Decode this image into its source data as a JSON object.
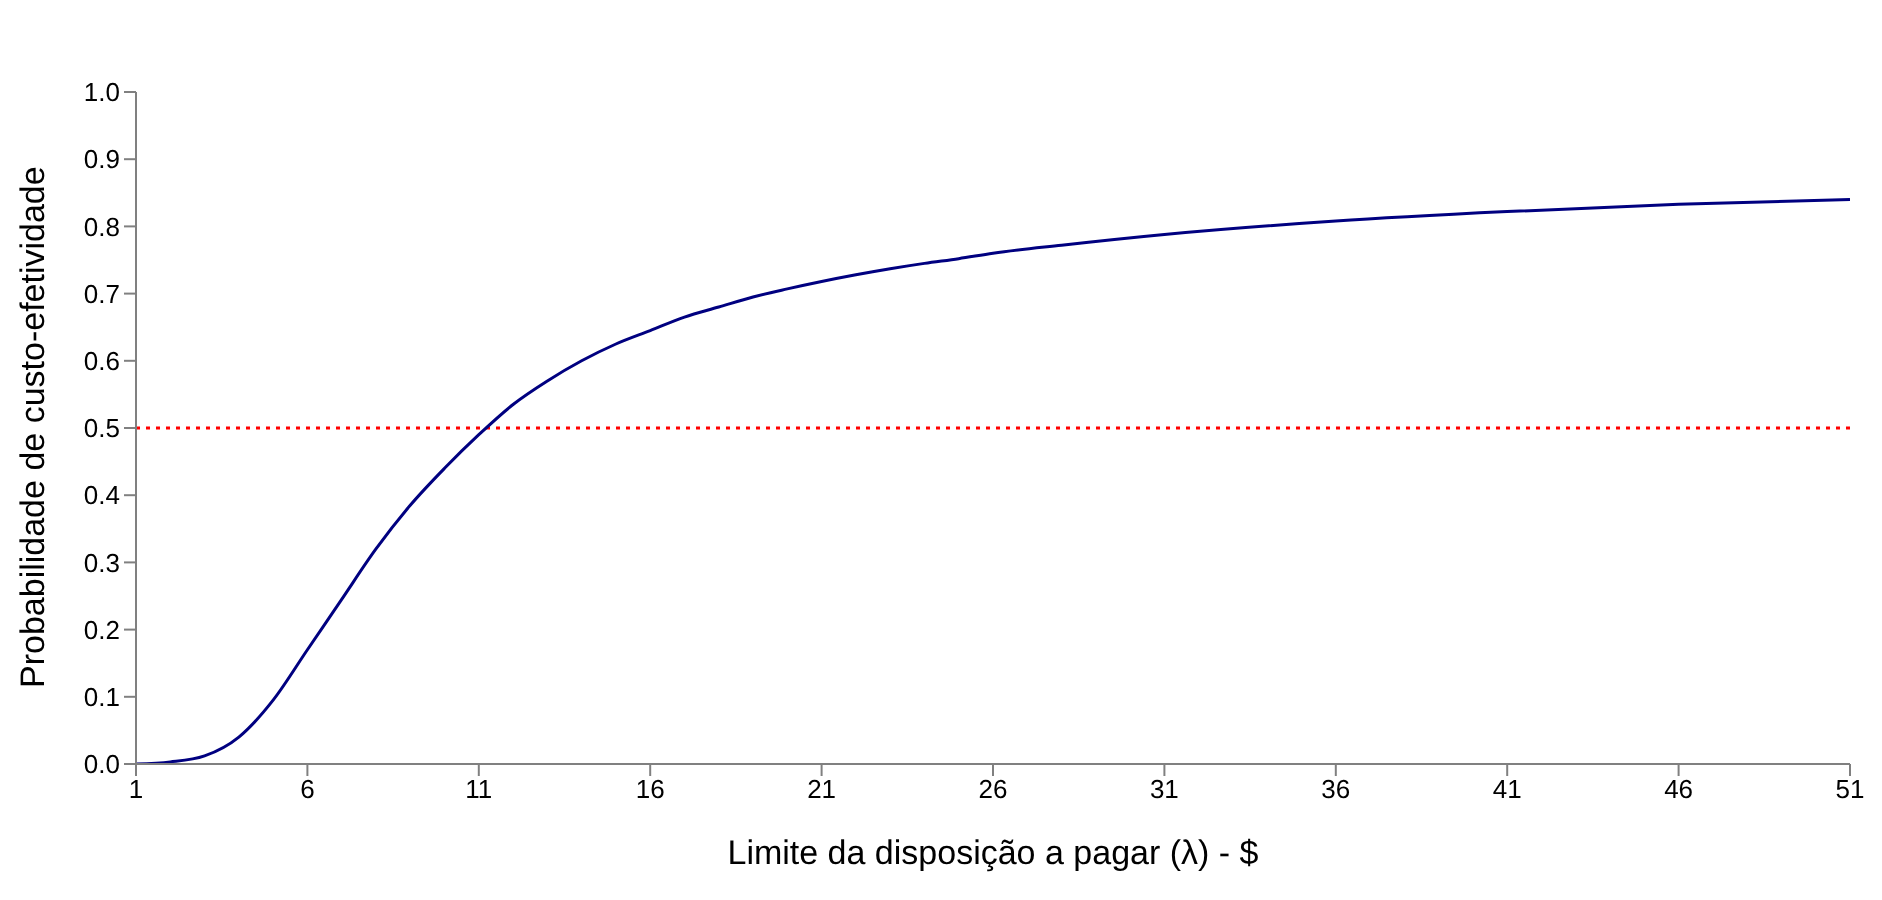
{
  "chart_data": {
    "type": "line",
    "xlabel": "Limite da disposição a pagar (λ) - $",
    "ylabel": "Probabilidade de custo-efetividade",
    "x": [
      1,
      2,
      3,
      4,
      5,
      6,
      7,
      8,
      9,
      10,
      11,
      12,
      13,
      14,
      15,
      16,
      17,
      18,
      19,
      20,
      21,
      22,
      23,
      24,
      25,
      26,
      28,
      31,
      36,
      41,
      46,
      51
    ],
    "series": [
      {
        "color": "#000080",
        "values": [
          0,
          0.003,
          0.012,
          0.04,
          0.095,
          0.17,
          0.245,
          0.32,
          0.385,
          0.44,
          0.49,
          0.535,
          0.57,
          0.6,
          0.625,
          0.645,
          0.665,
          0.68,
          0.695,
          0.707,
          0.718,
          0.728,
          0.737,
          0.745,
          0.752,
          0.76,
          0.772,
          0.788,
          0.808,
          0.822,
          0.833,
          0.84
        ]
      }
    ],
    "xlim": [
      1,
      51
    ],
    "xticks": [
      1,
      6,
      11,
      16,
      21,
      26,
      31,
      36,
      41,
      46,
      51
    ],
    "ylim": [
      0,
      1
    ],
    "yticks": [
      {
        "value": 0,
        "label": "0.0"
      },
      {
        "value": 0.1,
        "label": "0.1"
      },
      {
        "value": 0.2,
        "label": "0.2"
      },
      {
        "value": 0.3,
        "label": "0.3"
      },
      {
        "value": 0.4,
        "label": "0.4"
      },
      {
        "value": 0.5,
        "label": "0.5"
      },
      {
        "value": 0.6,
        "label": "0.6"
      },
      {
        "value": 0.7,
        "label": "0.7"
      },
      {
        "value": 0.8,
        "label": "0.8"
      },
      {
        "value": 0.9,
        "label": "0.9"
      },
      {
        "value": 1,
        "label": "1.0"
      }
    ],
    "ref_lines": [
      {
        "axis": "y",
        "value": 0.5,
        "color": "#ff0000",
        "line_style": "dotted"
      }
    ],
    "grid": false,
    "legend": false,
    "marker": "none",
    "line_style": "solid"
  }
}
